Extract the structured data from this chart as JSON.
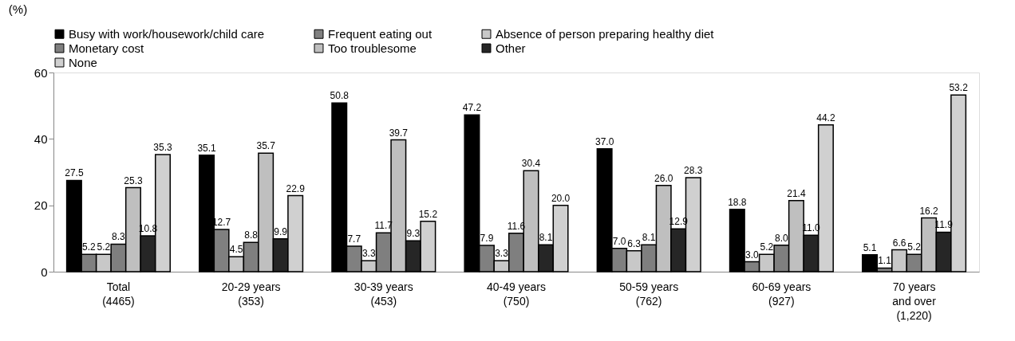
{
  "chart_data": {
    "type": "bar",
    "ylabel": "(%)",
    "categories": [
      "Total\n(4465)",
      "20-29 years\n(353)",
      "30-39 years\n(453)",
      "40-49 years\n(750)",
      "50-59 years\n(762)",
      "60-69 years\n(927)",
      "70 years\nand over\n(1,220)"
    ],
    "series": [
      {
        "name": "Busy with work/housework/child care",
        "color": "#000000",
        "values": [
          27.5,
          35.1,
          50.8,
          47.2,
          37.0,
          18.8,
          5.1
        ],
        "value_labels": [
          "27.5",
          "35.1",
          "50.8",
          "47.2",
          "37.0",
          "18.8",
          "5.1"
        ]
      },
      {
        "name": "Frequent eating out",
        "color": "#808080",
        "values": [
          5.2,
          12.7,
          7.7,
          7.9,
          7.0,
          3.0,
          1.1
        ],
        "value_labels": [
          "5.2",
          "12.7",
          "7.7",
          "7.9",
          "7.0",
          "3.0",
          "1.1"
        ]
      },
      {
        "name": "Absence of person preparing healthy diet",
        "color": "#c8c8c8",
        "values": [
          5.2,
          4.5,
          3.3,
          3.3,
          6.3,
          5.2,
          6.6
        ],
        "value_labels": [
          "5.2",
          "4.5",
          "3.3",
          "3.3",
          "6.3",
          "5.2",
          "6.6"
        ]
      },
      {
        "name": "Monetary cost",
        "color": "#7f7f7f",
        "values": [
          8.3,
          8.8,
          11.7,
          11.6,
          8.1,
          8.0,
          5.2
        ],
        "value_labels": [
          "8.3",
          "8.8",
          "11.7",
          "11.6",
          "8.1",
          "8.0",
          "5.2"
        ]
      },
      {
        "name": "Too troublesome",
        "color": "#bfbfbf",
        "values": [
          25.3,
          35.7,
          39.7,
          30.4,
          26.0,
          21.4,
          16.2
        ],
        "value_labels": [
          "25.3",
          "35.7",
          "39.7",
          "30.4",
          "26.0",
          "21.4",
          "16.2"
        ]
      },
      {
        "name": "Other",
        "color": "#262626",
        "values": [
          10.8,
          9.9,
          9.3,
          8.1,
          12.9,
          11.0,
          11.9
        ],
        "value_labels": [
          "10.8",
          "9.9",
          "9.3",
          "8.1",
          "12.9",
          "11.0",
          "11.9"
        ]
      },
      {
        "name": "None",
        "color": "#d0d0d0",
        "values": [
          35.3,
          22.9,
          15.2,
          20.0,
          28.3,
          44.2,
          53.2
        ],
        "value_labels": [
          "35.3",
          "22.9",
          "15.2",
          "20.0",
          "28.3",
          "44.2",
          "53.2"
        ]
      }
    ],
    "ylim": [
      0,
      60
    ],
    "yticks": [
      0,
      20,
      40,
      60
    ],
    "grid": false,
    "legend": "top"
  }
}
